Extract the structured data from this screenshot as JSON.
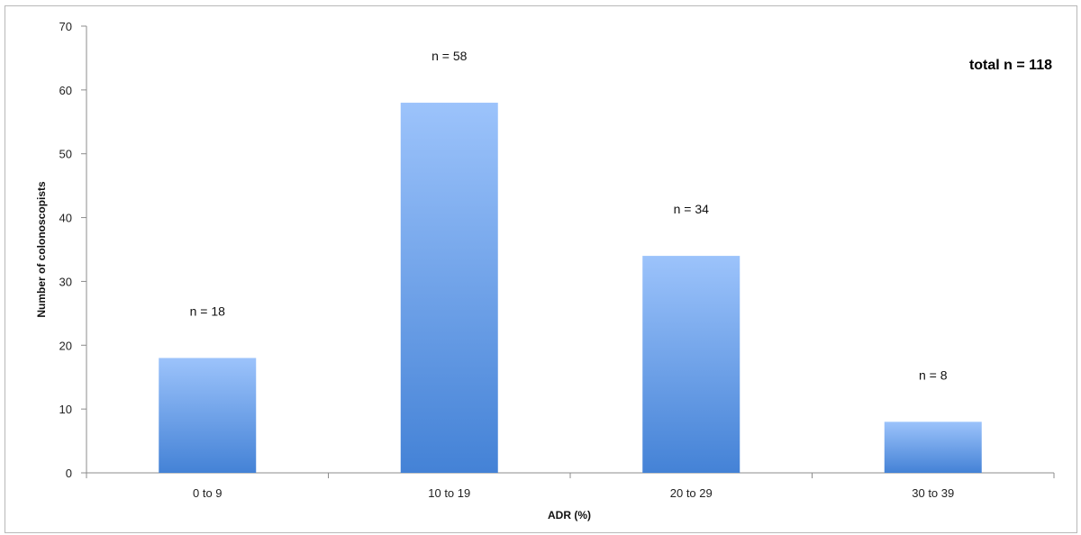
{
  "chart_data": {
    "type": "bar",
    "title": "",
    "xlabel": "ADR (%)",
    "ylabel": "Number of colonoscopists",
    "categories": [
      "0 to 9",
      "10 to 19",
      "20 to 29",
      "30 to 39"
    ],
    "values": [
      18,
      58,
      34,
      8
    ],
    "data_labels": [
      "n = 18",
      "n = 58",
      "n = 34",
      "n = 8"
    ],
    "ylim": [
      0,
      70
    ],
    "yticks": [
      0,
      10,
      20,
      30,
      40,
      50,
      60,
      70
    ],
    "grid": false,
    "legend": "none",
    "annotation": "total n = 118",
    "bar_color_top": "#9cc3fb",
    "bar_color_bottom": "#4482d6"
  }
}
